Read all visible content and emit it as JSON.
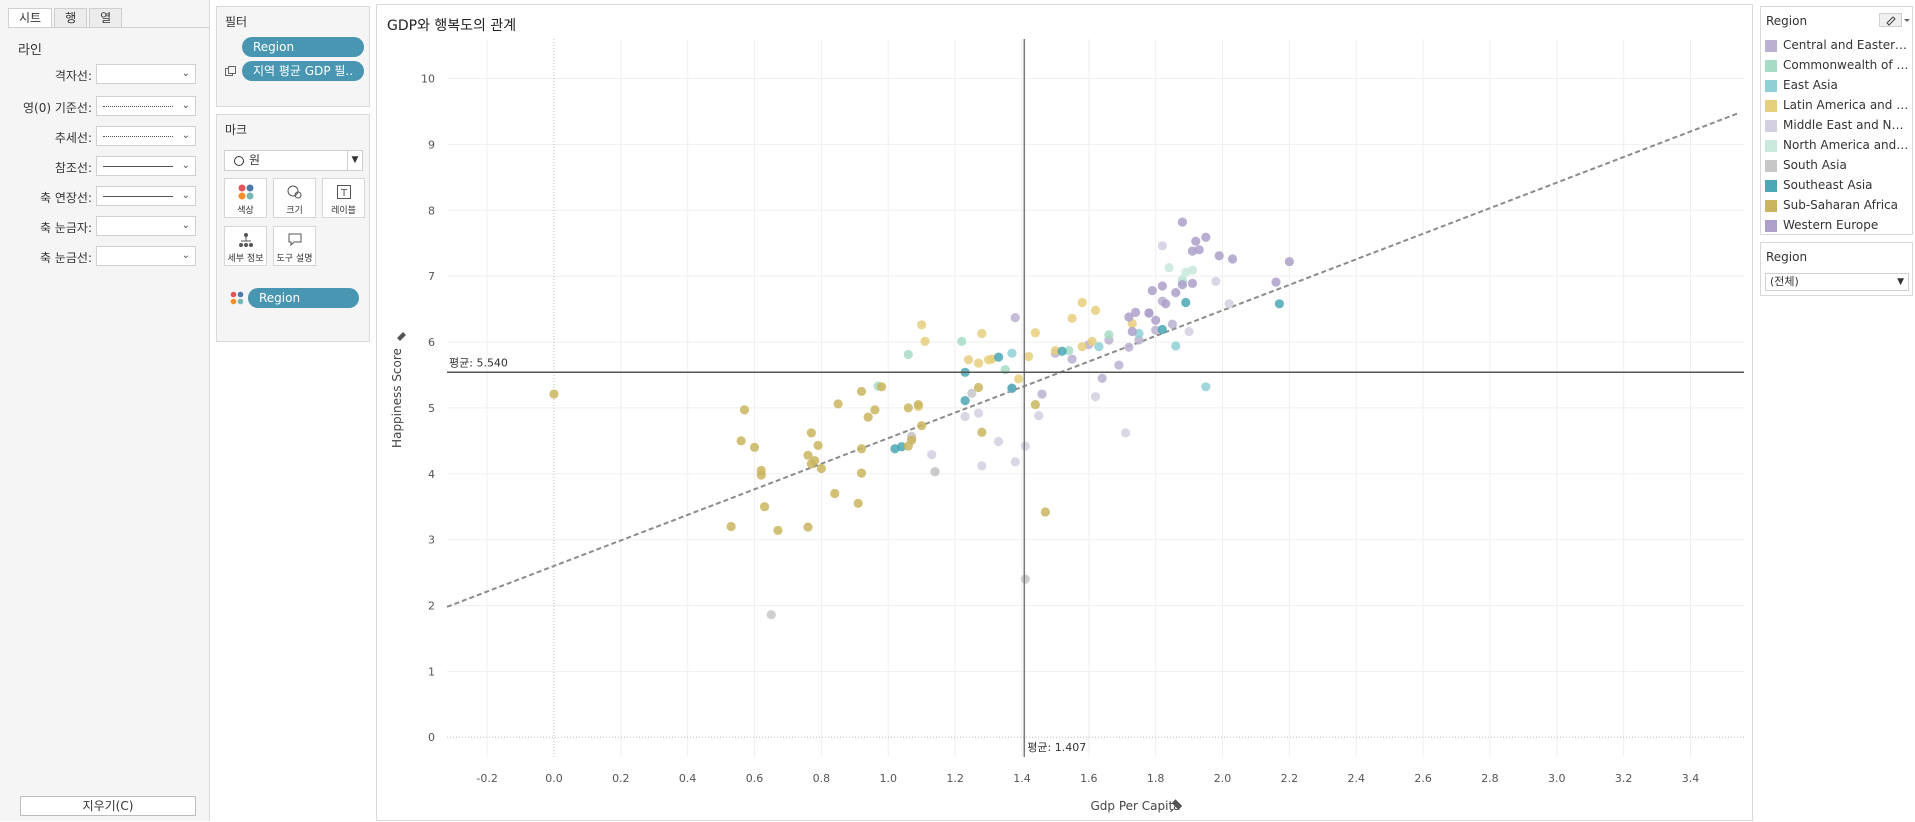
{
  "format_panel": {
    "tabs": [
      "시트",
      "행",
      "열"
    ],
    "section_title": "라인",
    "rows": [
      {
        "label": "격자선:",
        "style": "none"
      },
      {
        "label": "영(0) 기준선:",
        "style": "dotted"
      },
      {
        "label": "추세선:",
        "style": "dotted"
      },
      {
        "label": "참조선:",
        "style": "solid"
      },
      {
        "label": "축 연장선:",
        "style": "solid"
      },
      {
        "label": "축 눈금자:",
        "style": "none"
      },
      {
        "label": "축 눈금선:",
        "style": "none"
      }
    ],
    "clear_button": "지우기(C)"
  },
  "filters": {
    "title": "필터",
    "pills": [
      "Region",
      "지역 평균 GDP 필.."
    ]
  },
  "marks": {
    "title": "마크",
    "type": "원",
    "buttons": [
      "색상",
      "크기",
      "레이블",
      "세부 정보",
      "도구 설명"
    ],
    "color_pill": "Region"
  },
  "legend": {
    "title": "Region",
    "items": [
      {
        "name": "Central and Eastern ..",
        "color": "#bbb0d1"
      },
      {
        "name": "Commonwealth of In..",
        "color": "#a6dcc4"
      },
      {
        "name": "East Asia",
        "color": "#8fd0d6"
      },
      {
        "name": "Latin America and Ca..",
        "color": "#e6cf7c"
      },
      {
        "name": "Middle East and Nort..",
        "color": "#d5cfe2"
      },
      {
        "name": "North America and A..",
        "color": "#c8e9dc"
      },
      {
        "name": "South Asia",
        "color": "#c7c7c7"
      },
      {
        "name": "Southeast Asia",
        "color": "#4aa7b5"
      },
      {
        "name": "Sub-Saharan Africa",
        "color": "#c9b55d"
      },
      {
        "name": "Western Europe",
        "color": "#ad9fca"
      }
    ]
  },
  "region_filter": {
    "title": "Region",
    "value": "(전체)"
  },
  "chart_data": {
    "type": "scatter",
    "title": "GDP와 행복도의 관계",
    "xlabel": "Gdp Per Capita",
    "ylabel": "Happiness Score",
    "xlim": [
      -0.32,
      3.56
    ],
    "ylim": [
      -0.3,
      10.6
    ],
    "x_ticks": [
      "-0.2",
      "0.0",
      "0.2",
      "0.4",
      "0.6",
      "0.8",
      "1.0",
      "1.2",
      "1.4",
      "1.6",
      "1.8",
      "2.0",
      "2.2",
      "2.4",
      "2.6",
      "2.8",
      "3.0",
      "3.2",
      "3.4"
    ],
    "y_ticks": [
      "0",
      "1",
      "2",
      "3",
      "4",
      "5",
      "6",
      "7",
      "8",
      "9",
      "10"
    ],
    "grid": true,
    "reference_lines": {
      "x_mean": 1.407,
      "x_label": "평균: 1.407",
      "y_mean": 5.54,
      "y_label": "평균: 5.540"
    },
    "trend_line": {
      "slope": 1.94,
      "intercept": 2.6
    },
    "series": [
      {
        "name": "Central and Eastern Europe",
        "color": "#bbb0d1",
        "points": [
          [
            1.38,
            6.37
          ],
          [
            1.5,
            5.83
          ],
          [
            1.55,
            5.74
          ],
          [
            1.6,
            5.96
          ],
          [
            1.66,
            6.03
          ],
          [
            1.72,
            5.92
          ],
          [
            1.75,
            6.03
          ],
          [
            1.8,
            6.18
          ],
          [
            1.78,
            6.44
          ],
          [
            1.82,
            6.62
          ],
          [
            1.85,
            6.27
          ],
          [
            1.46,
            5.21
          ],
          [
            1.69,
            5.65
          ],
          [
            1.64,
            5.45
          ]
        ]
      },
      {
        "name": "Commonwealth of Independent States",
        "color": "#a6dcc4",
        "points": [
          [
            1.06,
            5.81
          ],
          [
            1.22,
            6.01
          ],
          [
            0.97,
            5.33
          ],
          [
            1.35,
            5.58
          ],
          [
            1.54,
            5.87
          ],
          [
            1.66,
            6.11
          ]
        ]
      },
      {
        "name": "East Asia",
        "color": "#8fd0d6",
        "points": [
          [
            1.95,
            5.32
          ],
          [
            1.86,
            5.94
          ],
          [
            1.88,
            6.92
          ],
          [
            1.75,
            6.13
          ],
          [
            1.63,
            5.93
          ],
          [
            1.37,
            5.83
          ]
        ]
      },
      {
        "name": "Latin America and Caribbean",
        "color": "#e6cf7c",
        "points": [
          [
            1.1,
            6.26
          ],
          [
            1.28,
            6.13
          ],
          [
            1.3,
            5.73
          ],
          [
            1.44,
            6.14
          ],
          [
            1.58,
            6.6
          ],
          [
            1.62,
            6.48
          ],
          [
            1.73,
            6.28
          ],
          [
            1.27,
            5.68
          ],
          [
            1.39,
            5.44
          ],
          [
            1.5,
            5.87
          ],
          [
            1.24,
            5.73
          ],
          [
            1.58,
            5.93
          ],
          [
            1.09,
            5.02
          ],
          [
            1.42,
            5.78
          ],
          [
            1.55,
            6.36
          ],
          [
            1.31,
            5.74
          ],
          [
            1.11,
            6.01
          ],
          [
            1.61,
            6.01
          ]
        ]
      },
      {
        "name": "Middle East and North Africa",
        "color": "#d5cfe2",
        "points": [
          [
            1.13,
            4.29
          ],
          [
            1.14,
            4.03
          ],
          [
            1.27,
            4.92
          ],
          [
            1.33,
            4.49
          ],
          [
            1.28,
            4.12
          ],
          [
            1.38,
            4.18
          ],
          [
            1.41,
            4.42
          ],
          [
            1.45,
            4.88
          ],
          [
            1.23,
            4.87
          ],
          [
            1.71,
            4.62
          ],
          [
            1.9,
            6.16
          ],
          [
            2.02,
            6.58
          ],
          [
            1.82,
            7.46
          ],
          [
            1.98,
            6.92
          ],
          [
            1.37,
            5.29
          ],
          [
            1.62,
            5.17
          ],
          [
            1.07,
            4.54
          ]
        ]
      },
      {
        "name": "North America and ANZ",
        "color": "#c8e9dc",
        "points": [
          [
            1.84,
            7.13
          ],
          [
            1.89,
            7.06
          ],
          [
            1.91,
            7.09
          ],
          [
            1.88,
            6.95
          ]
        ]
      },
      {
        "name": "South Asia",
        "color": "#c7c7c7",
        "points": [
          [
            0.65,
            1.86
          ],
          [
            1.41,
            2.4
          ],
          [
            1.14,
            4.03
          ],
          [
            1.07,
            4.57
          ],
          [
            1.25,
            5.22
          ]
        ]
      },
      {
        "name": "Southeast Asia",
        "color": "#4aa7b5",
        "points": [
          [
            1.02,
            4.38
          ],
          [
            1.04,
            4.41
          ],
          [
            1.23,
            5.54
          ],
          [
            1.33,
            5.77
          ],
          [
            1.52,
            5.86
          ],
          [
            1.37,
            5.3
          ],
          [
            1.82,
            6.19
          ],
          [
            1.89,
            6.6
          ],
          [
            2.17,
            6.58
          ],
          [
            1.23,
            5.11
          ]
        ]
      },
      {
        "name": "Sub-Saharan Africa",
        "color": "#c9b55d",
        "points": [
          [
            0.0,
            5.21
          ],
          [
            0.53,
            3.2
          ],
          [
            0.56,
            4.5
          ],
          [
            0.57,
            4.97
          ],
          [
            0.6,
            4.4
          ],
          [
            0.62,
            4.05
          ],
          [
            0.63,
            3.5
          ],
          [
            0.62,
            3.98
          ],
          [
            0.67,
            3.14
          ],
          [
            0.76,
            3.19
          ],
          [
            0.77,
            4.62
          ],
          [
            0.76,
            4.28
          ],
          [
            0.77,
            4.15
          ],
          [
            0.78,
            4.2
          ],
          [
            0.8,
            4.08
          ],
          [
            0.79,
            4.43
          ],
          [
            0.84,
            3.7
          ],
          [
            0.85,
            5.06
          ],
          [
            0.91,
            3.55
          ],
          [
            0.92,
            4.01
          ],
          [
            0.92,
            5.25
          ],
          [
            0.92,
            4.38
          ],
          [
            0.94,
            4.86
          ],
          [
            0.96,
            4.97
          ],
          [
            0.98,
            5.32
          ],
          [
            1.06,
            5.0
          ],
          [
            1.07,
            4.51
          ],
          [
            1.09,
            5.05
          ],
          [
            1.1,
            4.73
          ],
          [
            1.27,
            5.31
          ],
          [
            1.28,
            4.63
          ],
          [
            1.44,
            5.05
          ],
          [
            1.47,
            3.42
          ],
          [
            1.06,
            4.42
          ]
        ]
      },
      {
        "name": "Western Europe",
        "color": "#ad9fca",
        "points": [
          [
            1.88,
            7.82
          ],
          [
            1.92,
            7.53
          ],
          [
            1.95,
            7.59
          ],
          [
            1.93,
            7.4
          ],
          [
            1.91,
            7.38
          ],
          [
            1.99,
            7.31
          ],
          [
            2.03,
            7.26
          ],
          [
            2.2,
            7.22
          ],
          [
            2.16,
            6.91
          ],
          [
            1.79,
            6.78
          ],
          [
            1.82,
            6.85
          ],
          [
            1.86,
            6.75
          ],
          [
            1.88,
            6.87
          ],
          [
            1.83,
            6.58
          ],
          [
            1.91,
            6.89
          ],
          [
            1.78,
            6.44
          ],
          [
            1.8,
            6.33
          ],
          [
            1.74,
            6.45
          ],
          [
            1.73,
            6.16
          ],
          [
            1.72,
            6.38
          ]
        ]
      }
    ]
  }
}
